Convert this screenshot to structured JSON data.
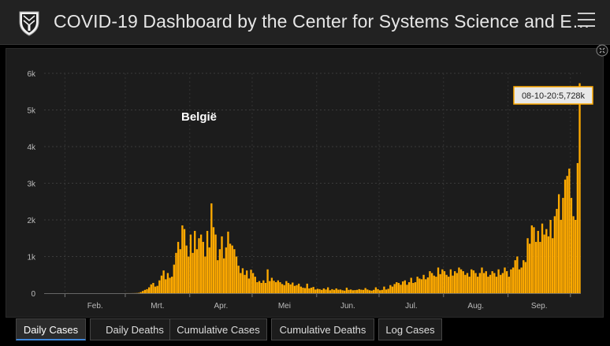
{
  "header": {
    "title": "COVID-19 Dashboard by the Center for Systems Science and E…"
  },
  "tabs": [
    {
      "label": "Daily Cases",
      "active": true
    },
    {
      "label": "Daily Deaths",
      "active": false
    },
    {
      "label": "Cumulative Cases",
      "active": false
    },
    {
      "label": "Cumulative Deaths",
      "active": false
    },
    {
      "label": "Log Cases",
      "active": false
    }
  ],
  "colors": {
    "bar": "#ffaa00",
    "tooltip_border": "#ffaa00",
    "active_tab": "#3f86d9"
  },
  "chart_data": {
    "type": "bar",
    "title": "België",
    "ylim": [
      0,
      6000
    ],
    "y_ticks": [
      "0",
      "1k",
      "2k",
      "3k",
      "4k",
      "5k",
      "6k"
    ],
    "x_ticks": [
      "Feb.",
      "Mrt.",
      "Apr.",
      "Mei",
      "Jun.",
      "Jul.",
      "Aug.",
      "Sep."
    ],
    "start_date": "2020-01-22",
    "end_date": "2020-10-08",
    "tooltip": "08-10-20:5,728k",
    "values": [
      0,
      0,
      0,
      0,
      0,
      0,
      0,
      0,
      0,
      0,
      0,
      1,
      0,
      0,
      0,
      0,
      0,
      0,
      0,
      0,
      0,
      0,
      0,
      0,
      0,
      0,
      0,
      0,
      0,
      0,
      0,
      0,
      0,
      0,
      0,
      0,
      0,
      0,
      0,
      1,
      1,
      1,
      2,
      3,
      5,
      10,
      30,
      60,
      90,
      110,
      160,
      240,
      280,
      180,
      200,
      350,
      480,
      620,
      380,
      550,
      420,
      450,
      780,
      1100,
      1400,
      1200,
      1850,
      1750,
      1300,
      1000,
      1600,
      1100,
      1700,
      1200,
      1500,
      1600,
      1400,
      1000,
      1700,
      1250,
      2450,
      1800,
      1600,
      900,
      1200,
      1550,
      950,
      1250,
      1680,
      1350,
      1300,
      1200,
      1000,
      750,
      550,
      680,
      500,
      620,
      400,
      640,
      550,
      450,
      300,
      330,
      280,
      350,
      280,
      650,
      330,
      420,
      340,
      300,
      350,
      300,
      250,
      220,
      330,
      280,
      240,
      290,
      200,
      220,
      260,
      180,
      150,
      140,
      260,
      130,
      150,
      170,
      100,
      120,
      110,
      90,
      130,
      100,
      160,
      80,
      110,
      90,
      130,
      95,
      100,
      80,
      70,
      150,
      90,
      100,
      80,
      85,
      90,
      110,
      95,
      90,
      140,
      100,
      80,
      70,
      90,
      160,
      110,
      80,
      90,
      180,
      100,
      120,
      220,
      180,
      250,
      300,
      280,
      230,
      320,
      350,
      230,
      300,
      420,
      280,
      300,
      450,
      400,
      380,
      500,
      380,
      430,
      600,
      550,
      480,
      450,
      700,
      520,
      650,
      600,
      500,
      450,
      650,
      480,
      600,
      550,
      700,
      650,
      600,
      500,
      550,
      450,
      650,
      620,
      550,
      450,
      550,
      700,
      550,
      600,
      450,
      500,
      600,
      550,
      450,
      650,
      500,
      550,
      700,
      600,
      450,
      650,
      700,
      900,
      1000,
      650,
      700,
      900,
      850,
      1500,
      1350,
      1850,
      1800,
      1400,
      1700,
      1400,
      1900,
      1600,
      1750,
      1550,
      2000,
      1500,
      2100,
      2300,
      2700,
      2000,
      2600,
      3100,
      3200,
      3400,
      2600,
      2100,
      2000,
      3550,
      5728
    ]
  }
}
